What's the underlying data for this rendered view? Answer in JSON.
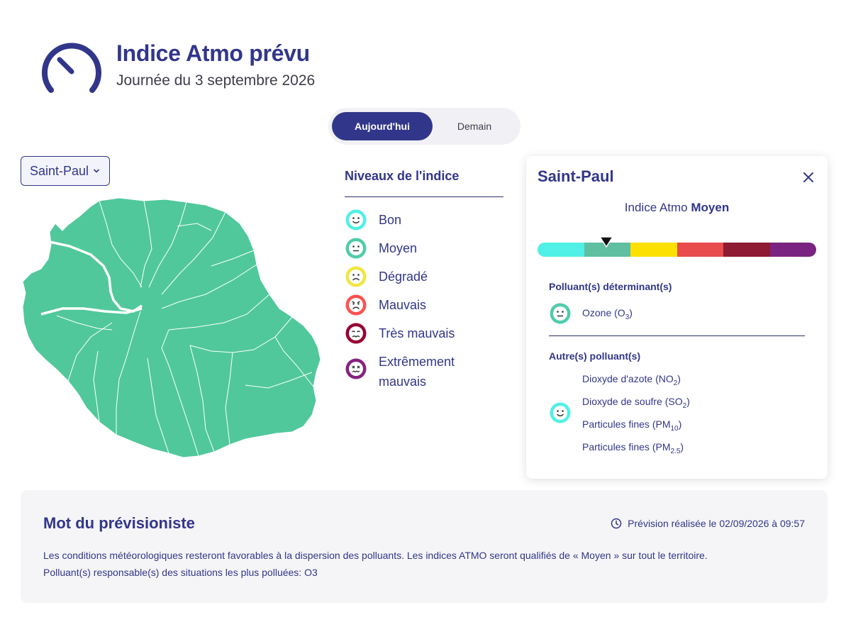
{
  "header": {
    "title": "Indice Atmo prévu",
    "subtitle": "Journée du 3 septembre 2026"
  },
  "toggle": {
    "today": "Aujourd'hui",
    "tomorrow": "Demain"
  },
  "city_select": {
    "value": "Saint-Paul"
  },
  "legend": {
    "title": "Niveaux de l'indice",
    "levels": [
      {
        "label": "Bon",
        "color": "#50f0e6"
      },
      {
        "label": "Moyen",
        "color": "#50ccaa"
      },
      {
        "label": "Dégradé",
        "color": "#f0e641"
      },
      {
        "label": "Mauvais",
        "color": "#ff5050"
      },
      {
        "label": "Très mauvais",
        "color": "#960032"
      },
      {
        "label": "Extrêmement mauvais",
        "color": "#872181"
      }
    ]
  },
  "card": {
    "title": "Saint-Paul",
    "index_prefix": "Indice Atmo",
    "index_value": "Moyen",
    "determinant_title": "Polluant(s) déterminant(s)",
    "determinant": {
      "name": "Ozone (O",
      "sub": "3",
      "suffix": ")"
    },
    "others_title": "Autre(s) polluant(s)",
    "others": [
      {
        "name": "Dioxyde d'azote (NO",
        "sub": "2",
        "suffix": ")"
      },
      {
        "name": "Dioxyde de soufre (SO",
        "sub": "2",
        "suffix": ")"
      },
      {
        "name": "Particules fines (PM",
        "sub": "10",
        "suffix": ")"
      },
      {
        "name": "Particules fines (PM",
        "sub": "2.5",
        "suffix": ")"
      }
    ]
  },
  "forecaster": {
    "title": "Mot du prévisioniste",
    "date": "Prévision réalisée le 02/09/2026 à 09:57",
    "line1": "Les conditions météorologiques resteront favorables à la dispersion des polluants. Les indices ATMO seront qualifiés de « Moyen » sur tout le territoire.",
    "line2": "Polluant(s) responsable(s) des situations les plus polluées: O3"
  },
  "colors": {
    "primary": "#32368a",
    "map_fill": "#50c89c",
    "scale": [
      "#50f0e6",
      "#50ccaa",
      "#f0e641",
      "#ff5050",
      "#960032",
      "#872181"
    ]
  }
}
